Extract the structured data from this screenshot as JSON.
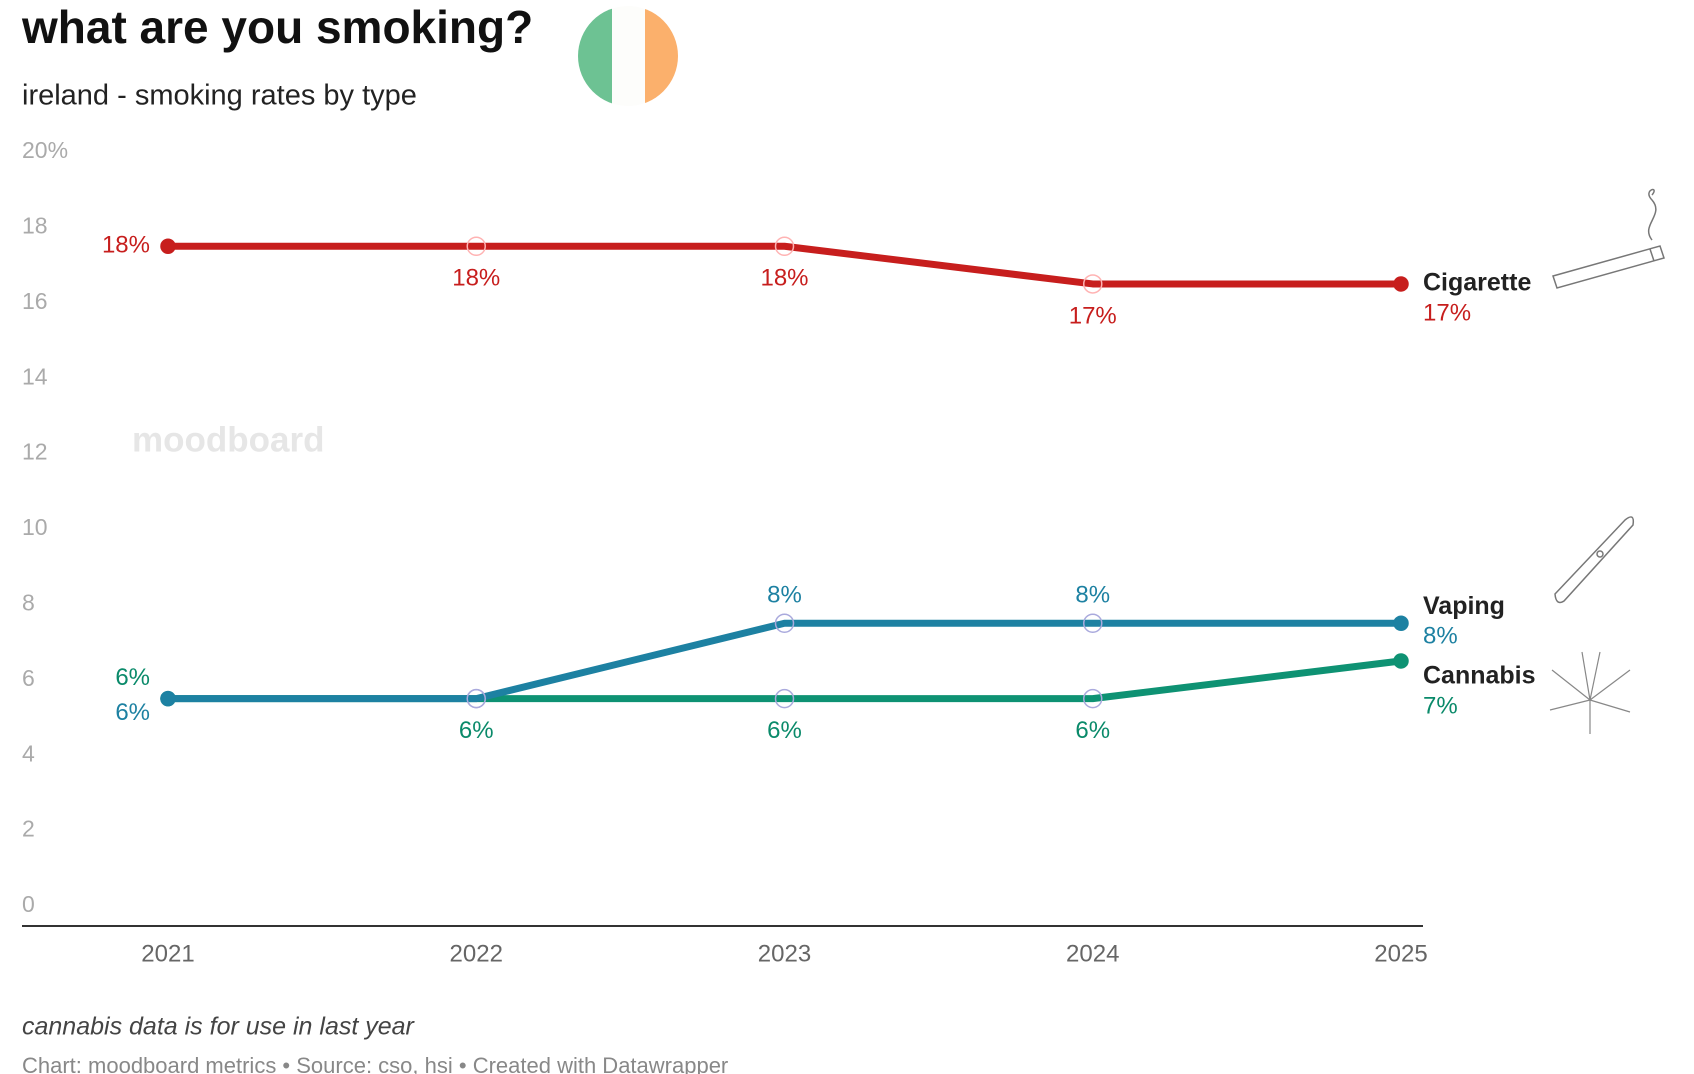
{
  "chart_data": {
    "type": "line",
    "title": "what are you smoking?",
    "subtitle": "ireland - smoking rates by type",
    "watermark": "moodboard",
    "note": "cannabis data is for use in last year",
    "source": "Chart: moodboard metrics • Source: cso, hsi • Created with Datawrapper",
    "categories": [
      "2021",
      "2022",
      "2023",
      "2024",
      "2025"
    ],
    "series": [
      {
        "name": "Cigarette",
        "color": "#c71e1d",
        "values": [
          17.5,
          17.5,
          17.5,
          16.5,
          16.5
        ],
        "value_labels": [
          "18%",
          "18%",
          "18%",
          "17%",
          "17%"
        ]
      },
      {
        "name": "Vaping",
        "color": "#1d81a2",
        "values": [
          5.5,
          5.5,
          7.5,
          7.5,
          7.5
        ],
        "value_labels": [
          "6%",
          null,
          "8%",
          "8%",
          "8%"
        ]
      },
      {
        "name": "Cannabis",
        "color": "#0e9273",
        "values": [
          5.5,
          5.5,
          5.5,
          5.5,
          6.5
        ],
        "value_labels": [
          "6%",
          "6%",
          "6%",
          "6%",
          "7%"
        ]
      }
    ],
    "ylim": [
      0,
      20
    ],
    "yticks": [
      0,
      2,
      4,
      6,
      8,
      10,
      12,
      14,
      16,
      18,
      {
        "value": 20,
        "label": "20%"
      }
    ],
    "grid": false
  }
}
